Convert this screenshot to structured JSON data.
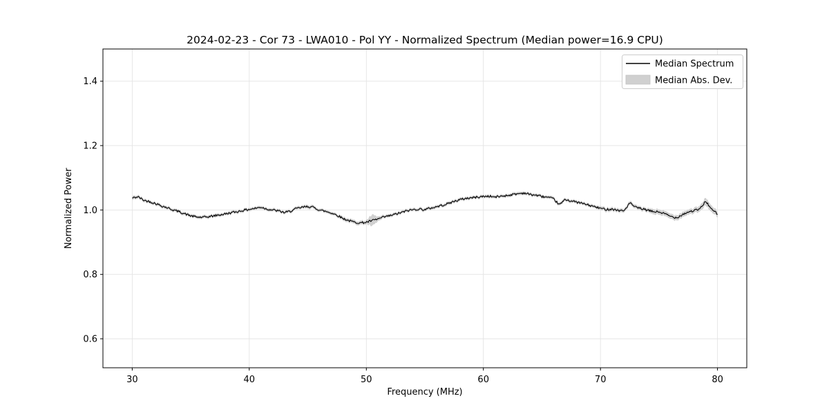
{
  "figure": {
    "title": "2024-02-23 - Cor 73 - LWA010 - Pol YY - Normalized Spectrum (Median power=16.9 CPU)",
    "xlabel": "Frequency (MHz)",
    "ylabel": "Normalized Power"
  },
  "legend": {
    "items": [
      {
        "label": "Median Spectrum",
        "type": "line",
        "color": "#000000"
      },
      {
        "label": "Median Abs. Dev.",
        "type": "patch",
        "color": "#d3d3d3"
      }
    ]
  },
  "colors": {
    "line": "#000000",
    "band": "#d0d0d0",
    "grid": "#e4e4e4",
    "axis": "#000000",
    "background": "#ffffff",
    "legend_border": "#cccccc"
  },
  "chart_data": {
    "type": "line",
    "title": "2024-02-23 - Cor 73 - LWA010 - Pol YY - Normalized Spectrum (Median power=16.9 CPU)",
    "xlabel": "Frequency (MHz)",
    "ylabel": "Normalized Power",
    "xlim": [
      27.5,
      82.5
    ],
    "ylim": [
      0.51,
      1.5
    ],
    "xticks": [
      30,
      40,
      50,
      60,
      70,
      80
    ],
    "yticks": [
      0.6,
      0.8,
      1.0,
      1.2,
      1.4
    ],
    "grid": true,
    "legend_position": "upper right",
    "noise_amplitude": 0.0035,
    "series": [
      {
        "name": "Median Spectrum",
        "color": "#000000",
        "freq_start": 30.0,
        "freq_step": 0.5,
        "values": [
          1.037,
          1.041,
          1.03,
          1.026,
          1.02,
          1.013,
          1.007,
          1.0,
          0.995,
          0.988,
          0.982,
          0.978,
          0.977,
          0.979,
          0.982,
          0.985,
          0.988,
          0.992,
          0.995,
          0.999,
          1.002,
          1.005,
          1.009,
          1.003,
          1.0,
          0.997,
          0.992,
          0.996,
          1.004,
          1.008,
          1.011,
          1.008,
          1.0,
          0.996,
          0.991,
          0.984,
          0.974,
          0.967,
          0.962,
          0.96,
          0.962,
          0.967,
          0.972,
          0.978,
          0.982,
          0.987,
          0.992,
          0.998,
          1.001,
          1.003,
          1.001,
          1.006,
          1.01,
          1.015,
          1.02,
          1.027,
          1.032,
          1.036,
          1.038,
          1.04,
          1.042,
          1.043,
          1.04,
          1.043,
          1.045,
          1.048,
          1.051,
          1.053,
          1.048,
          1.046,
          1.042,
          1.039,
          1.034,
          1.016,
          1.033,
          1.028,
          1.024,
          1.02,
          1.015,
          1.01,
          1.005,
          1.002,
          1.003,
          0.999,
          0.997,
          1.022,
          1.008,
          1.004,
          0.999,
          0.995,
          0.994,
          0.988,
          0.98,
          0.976,
          0.986,
          0.994,
          0.998,
          1.003,
          1.028,
          1.001,
          0.988
        ]
      },
      {
        "name": "Median Abs. Dev.",
        "color": "#d0d0d0",
        "freq_start": 30.0,
        "freq_step": 0.5,
        "half_widths": [
          0.006,
          0.005,
          0.005,
          0.005,
          0.005,
          0.005,
          0.005,
          0.005,
          0.005,
          0.005,
          0.005,
          0.005,
          0.005,
          0.005,
          0.005,
          0.005,
          0.005,
          0.005,
          0.005,
          0.005,
          0.005,
          0.005,
          0.005,
          0.005,
          0.005,
          0.005,
          0.005,
          0.005,
          0.005,
          0.005,
          0.006,
          0.005,
          0.005,
          0.005,
          0.005,
          0.005,
          0.006,
          0.006,
          0.006,
          0.006,
          0.006,
          0.018,
          0.007,
          0.005,
          0.005,
          0.005,
          0.005,
          0.005,
          0.005,
          0.005,
          0.005,
          0.005,
          0.005,
          0.005,
          0.005,
          0.005,
          0.005,
          0.005,
          0.005,
          0.005,
          0.005,
          0.005,
          0.005,
          0.005,
          0.005,
          0.005,
          0.005,
          0.005,
          0.005,
          0.005,
          0.005,
          0.005,
          0.005,
          0.005,
          0.005,
          0.005,
          0.005,
          0.005,
          0.005,
          0.005,
          0.006,
          0.006,
          0.006,
          0.006,
          0.006,
          0.006,
          0.006,
          0.006,
          0.006,
          0.008,
          0.008,
          0.008,
          0.008,
          0.008,
          0.008,
          0.008,
          0.008,
          0.009,
          0.012,
          0.01,
          0.009
        ]
      }
    ]
  }
}
